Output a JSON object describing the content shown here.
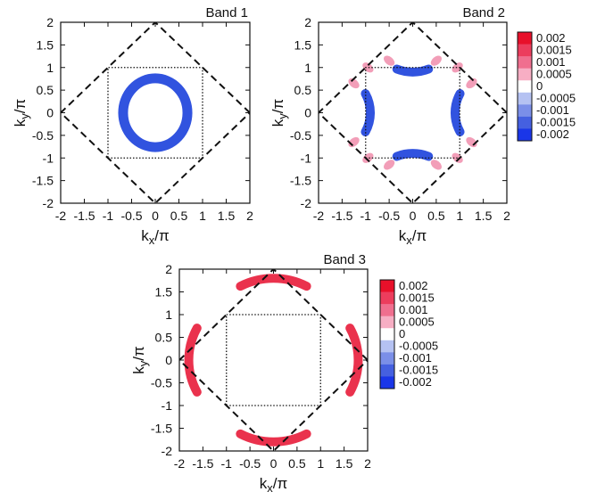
{
  "chart_data": [
    {
      "type": "heatmap",
      "title": "Band 1",
      "xlabel": "k",
      "xlabel_sub": "x",
      "xlabel_rest": "/π",
      "ylabel": "k",
      "ylabel_sub": "y",
      "ylabel_rest": "/π",
      "xlim": [
        -2,
        2
      ],
      "ylim": [
        -2,
        2
      ],
      "xticks": [
        "-2",
        "-1.5",
        "-1",
        "-0.5",
        "0",
        "0.5",
        "1",
        "1.5",
        "2"
      ],
      "yticks": [
        "2",
        "1.5",
        "1",
        "0.5",
        "0",
        "-0.5",
        "-1",
        "-1.5",
        "-2"
      ],
      "brillouin_zone_diamond": [
        [
          2,
          0
        ],
        [
          0,
          2
        ],
        [
          -2,
          0
        ],
        [
          0,
          -2
        ]
      ],
      "dotted_square": [
        [
          -1,
          -1
        ],
        [
          1,
          -1
        ],
        [
          1,
          1
        ],
        [
          -1,
          1
        ]
      ],
      "features": [
        {
          "shape": "closed ring around (0,0)",
          "rx": 0.68,
          "ry": 0.76,
          "value": -0.002
        }
      ],
      "has_colorbar": false
    },
    {
      "type": "heatmap",
      "title": "Band 2",
      "xlabel": "k",
      "xlabel_sub": "x",
      "xlabel_rest": "/π",
      "ylabel": "k",
      "ylabel_sub": "y",
      "ylabel_rest": "/π",
      "xlim": [
        -2,
        2
      ],
      "ylim": [
        -2,
        2
      ],
      "xticks": [
        "-2",
        "-1.5",
        "-1",
        "-0.5",
        "0",
        "0.5",
        "1",
        "1.5",
        "2"
      ],
      "yticks": [
        "2",
        "1.5",
        "1",
        "0.5",
        "0",
        "-0.5",
        "-1",
        "-1.5",
        "-2"
      ],
      "brillouin_zone_diamond": [
        [
          2,
          0
        ],
        [
          0,
          2
        ],
        [
          -2,
          0
        ],
        [
          0,
          -2
        ]
      ],
      "dotted_square": [
        [
          -1,
          -1
        ],
        [
          1,
          -1
        ],
        [
          1,
          1
        ],
        [
          -1,
          1
        ]
      ],
      "features": [
        {
          "shape": "arc centered (0,1.8)",
          "radius": 0.9,
          "from_deg": 248,
          "to_deg": 292,
          "value": -0.002
        },
        {
          "shape": "arc centered (0,-1.8)",
          "radius": 0.9,
          "from_deg": 68,
          "to_deg": 112,
          "value": -0.002
        },
        {
          "shape": "arc centered (1.8,0)",
          "radius": 0.9,
          "from_deg": 152,
          "to_deg": 208,
          "value": -0.002
        },
        {
          "shape": "arc centered (-1.8,0)",
          "radius": 0.9,
          "from_deg": -28,
          "to_deg": 28,
          "value": -0.002
        },
        {
          "shape": "spots near diamond edge",
          "points": [
            [
              0.5,
              1.15
            ],
            [
              -0.5,
              1.15
            ],
            [
              0.5,
              -1.15
            ],
            [
              -0.5,
              -1.15
            ],
            [
              1.25,
              0.65
            ],
            [
              -1.25,
              0.65
            ],
            [
              1.25,
              -0.65
            ],
            [
              -1.25,
              -0.65
            ],
            [
              0.95,
              1.0
            ],
            [
              -0.95,
              1.0
            ],
            [
              0.95,
              -1.0
            ],
            [
              -0.95,
              -1.0
            ]
          ],
          "value": 0.0008
        }
      ],
      "has_colorbar": true
    },
    {
      "type": "heatmap",
      "title": "Band 3",
      "xlabel": "k",
      "xlabel_sub": "x",
      "xlabel_rest": "/π",
      "ylabel": "k",
      "ylabel_sub": "y",
      "ylabel_rest": "/π",
      "xlim": [
        -2,
        2
      ],
      "ylim": [
        -2,
        2
      ],
      "xticks": [
        "-2",
        "-1.5",
        "-1",
        "-0.5",
        "0",
        "0.5",
        "1",
        "1.5",
        "2"
      ],
      "yticks": [
        "2",
        "1.5",
        "1",
        "0.5",
        "0",
        "-0.5",
        "-1",
        "-1.5",
        "-2"
      ],
      "brillouin_zone_diamond": [
        [
          2,
          0
        ],
        [
          0,
          2
        ],
        [
          -2,
          0
        ],
        [
          0,
          -2
        ]
      ],
      "dotted_square": [
        [
          -1,
          -1
        ],
        [
          1,
          -1
        ],
        [
          1,
          1
        ],
        [
          -1,
          1
        ]
      ],
      "features": [
        {
          "shape": "arc centered (0,0.3)",
          "radius": 1.5,
          "from_deg": 62,
          "to_deg": 118,
          "value": 0.002
        },
        {
          "shape": "arc centered (0,-0.3)",
          "radius": 1.5,
          "from_deg": 242,
          "to_deg": 298,
          "value": 0.002
        },
        {
          "shape": "arc centered (-0.3,0)",
          "radius": 1.5,
          "from_deg": 152,
          "to_deg": 208,
          "value": 0.002
        },
        {
          "shape": "arc centered (0.3,0)",
          "radius": 1.5,
          "from_deg": -28,
          "to_deg": 28,
          "value": 0.002
        }
      ],
      "has_colorbar": true
    }
  ],
  "colorbar": {
    "labels": [
      "0.002",
      "0.0015",
      "0.001",
      "0.0005",
      "0",
      "-0.0005",
      "-0.001",
      "-0.0015",
      "-0.002"
    ],
    "colors": [
      "#e8102a",
      "#ec3d5d",
      "#f06f8f",
      "#f7aec4",
      "#ffffff",
      "#b5c2f2",
      "#7b8fe8",
      "#4560e0",
      "#1a36e8"
    ]
  },
  "colors": {
    "negative": "#1f44dc",
    "positive": "#e8213e",
    "spot": "#ee7ea0"
  }
}
